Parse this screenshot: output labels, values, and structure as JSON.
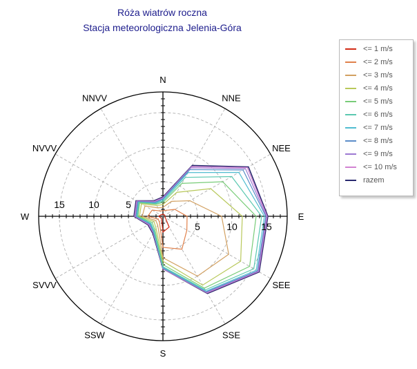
{
  "title": "Róża wiatrów roczna",
  "subtitle": "Stacja meteorologiczna Jelenia-Góra",
  "chart_data": {
    "type": "radar",
    "directions": [
      "N",
      "NNE",
      "NEE",
      "E",
      "SEE",
      "SSE",
      "S",
      "SSW",
      "SVVV",
      "W",
      "NVVV",
      "NNVV"
    ],
    "direction_labels": [
      "N",
      "NNE",
      "NEE",
      "E",
      "SEE",
      "SSE",
      "S",
      "SSW",
      "SVVV",
      "W",
      "NVVV",
      "NNVV"
    ],
    "radial_ticks": [
      5,
      10,
      15
    ],
    "radial_tick_labels": [
      "5",
      "10",
      "15"
    ],
    "rmax": 18,
    "grid": true,
    "legend_position": "right",
    "series": [
      {
        "name": "<= 1 m/s",
        "color": "#d22a14",
        "values": [
          0.3,
          0.3,
          0.3,
          0.3,
          0.4,
          1.8,
          2.3,
          0.4,
          0.4,
          0.6,
          0.4,
          0.3
        ]
      },
      {
        "name": "<= 2 m/s",
        "color": "#e0804a",
        "values": [
          0.8,
          1.0,
          2.0,
          3.5,
          4.0,
          5.5,
          4.5,
          1.0,
          0.8,
          2.2,
          1.8,
          0.9
        ]
      },
      {
        "name": "<= 3 m/s",
        "color": "#d2a060",
        "values": [
          1.3,
          2.5,
          4.5,
          8.5,
          11.0,
          10.0,
          6.0,
          1.5,
          1.2,
          3.0,
          3.0,
          1.4
        ]
      },
      {
        "name": "<= 4 m/s",
        "color": "#b8c85a",
        "values": [
          1.7,
          4.0,
          8.0,
          11.5,
          13.0,
          11.5,
          6.5,
          2.0,
          1.5,
          3.4,
          3.6,
          1.8
        ]
      },
      {
        "name": "<= 5 m/s",
        "color": "#78cc78",
        "values": [
          2.0,
          5.5,
          10.0,
          13.5,
          14.5,
          12.0,
          7.0,
          2.3,
          1.8,
          3.6,
          3.9,
          2.0
        ]
      },
      {
        "name": "<= 6 m/s",
        "color": "#5ac8b0",
        "values": [
          2.2,
          6.5,
          11.5,
          14.3,
          15.2,
          12.3,
          7.3,
          2.5,
          2.0,
          3.7,
          4.0,
          2.1
        ]
      },
      {
        "name": "<= 7 m/s",
        "color": "#50bcd0",
        "values": [
          2.4,
          7.3,
          12.7,
          14.7,
          15.6,
          12.5,
          7.4,
          2.6,
          2.1,
          3.8,
          4.1,
          2.2
        ]
      },
      {
        "name": "<= 8 m/s",
        "color": "#5a8cc8",
        "values": [
          2.5,
          7.8,
          13.4,
          14.9,
          15.8,
          12.6,
          7.5,
          2.7,
          2.2,
          3.9,
          4.2,
          2.3
        ]
      },
      {
        "name": "<= 9 m/s",
        "color": "#9c78d2",
        "values": [
          2.6,
          8.1,
          13.8,
          15.0,
          15.9,
          12.7,
          7.5,
          2.7,
          2.3,
          4.0,
          4.3,
          2.4
        ]
      },
      {
        "name": "<= 10 m/s",
        "color": "#d282d2",
        "values": [
          2.7,
          8.3,
          14.1,
          15.1,
          16.0,
          12.8,
          7.6,
          2.8,
          2.4,
          4.1,
          4.4,
          2.5
        ]
      },
      {
        "name": "razem",
        "color": "#28286e",
        "values": [
          2.8,
          8.5,
          14.3,
          15.2,
          16.1,
          12.9,
          7.6,
          2.9,
          2.5,
          4.2,
          4.5,
          2.6
        ]
      }
    ]
  }
}
